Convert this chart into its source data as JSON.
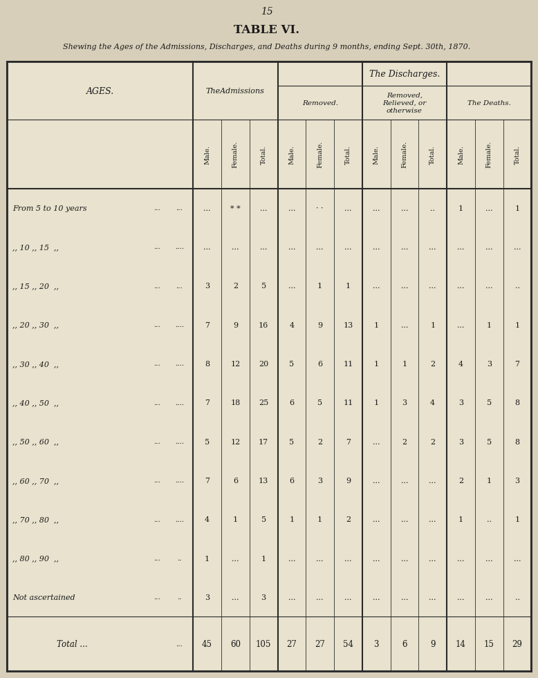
{
  "page_number": "15",
  "title": "TABLE VI.",
  "subtitle": "Shewing the Ages of the Admissions, Discharges, and Deaths during 9 months, ending Sept. 30th, 1870.",
  "bg_color": "#d8cfba",
  "table_bg": "#e8e2ce",
  "col_header_bg": "#ddd7c4",
  "discharge_header": "The Discharges.",
  "ages_label": "AGES.",
  "adm_label": "TheAdmissions",
  "removed_label": "Removed.",
  "relieved_label": "Removed,\nRelieved, or\notherwise",
  "deaths_label": "The Deaths.",
  "sub_labels": [
    "Male.",
    "Female.",
    "Total."
  ],
  "rows": [
    {
      "age": "From 5 to 10 years",
      "dots1": "...",
      "dots2": "...",
      "adm": [
        "...",
        "* *",
        "..."
      ],
      "rem": [
        "...",
        "· ·",
        "..."
      ],
      "rel": [
        "...",
        "...",
        ".."
      ],
      "dea": [
        "1",
        "...",
        "1"
      ]
    },
    {
      "age": ",, 10 ,, 15  ,,",
      "dots1": "...",
      "dots2": "....",
      "adm": [
        "...",
        "...",
        "..."
      ],
      "rem": [
        "...",
        "...",
        "..."
      ],
      "rel": [
        "...",
        "...",
        "..."
      ],
      "dea": [
        "...",
        "...",
        "..."
      ]
    },
    {
      "age": ",, 15 ,, 20  ,,",
      "dots1": "...",
      "dots2": "...",
      "adm": [
        "3",
        "2",
        "5"
      ],
      "rem": [
        "...",
        "1",
        "1"
      ],
      "rel": [
        "...",
        "...",
        "..."
      ],
      "dea": [
        "...",
        "...",
        ".."
      ]
    },
    {
      "age": ",, 20 ,, 30  ,,",
      "dots1": "...",
      "dots2": "....",
      "adm": [
        "7",
        "9",
        "16"
      ],
      "rem": [
        "4",
        "9",
        "13"
      ],
      "rel": [
        "1",
        "...",
        "1"
      ],
      "dea": [
        "...",
        "1",
        "1"
      ]
    },
    {
      "age": ",, 30 ,, 40  ,,",
      "dots1": "...",
      "dots2": "....",
      "adm": [
        "8",
        "12",
        "20"
      ],
      "rem": [
        "5",
        "6",
        "11"
      ],
      "rel": [
        "1",
        "1",
        "2"
      ],
      "dea": [
        "4",
        "3",
        "7"
      ]
    },
    {
      "age": ",, 40 ,, 50  ,,",
      "dots1": "...",
      "dots2": "....",
      "adm": [
        "7",
        "18",
        "25"
      ],
      "rem": [
        "6",
        "5",
        "11"
      ],
      "rel": [
        "1",
        "3",
        "4"
      ],
      "dea": [
        "3",
        "5",
        "8"
      ]
    },
    {
      "age": ",, 50 ,, 60  ,,",
      "dots1": "...",
      "dots2": "....",
      "adm": [
        "5",
        "12",
        "17"
      ],
      "rem": [
        "5",
        "2",
        "7"
      ],
      "rel": [
        "...",
        "2",
        "2"
      ],
      "dea": [
        "3",
        "5",
        "8"
      ]
    },
    {
      "age": ",, 60 ,, 70  ,,",
      "dots1": "...",
      "dots2": "....",
      "adm": [
        "7",
        "6",
        "13"
      ],
      "rem": [
        "6",
        "3",
        "9"
      ],
      "rel": [
        "...",
        "...",
        "..."
      ],
      "dea": [
        "2",
        "1",
        "3"
      ]
    },
    {
      "age": ",, 70 ,, 80  ,,",
      "dots1": "...",
      "dots2": "....",
      "adm": [
        "4",
        "1",
        "5"
      ],
      "rem": [
        "1",
        "1",
        "2"
      ],
      "rel": [
        "...",
        "...",
        "..."
      ],
      "dea": [
        "1",
        "..",
        "1"
      ]
    },
    {
      "age": ",, 80 ,, 90  ,,",
      "dots1": "...",
      "dots2": "..",
      "adm": [
        "1",
        "...",
        "1"
      ],
      "rem": [
        "...",
        "...",
        "..."
      ],
      "rel": [
        "...",
        "...",
        "..."
      ],
      "dea": [
        "...",
        "...",
        "..."
      ]
    },
    {
      "age": "Not ascertained",
      "dots1": "...",
      "dots2": "..",
      "adm": [
        "3",
        "...",
        "3"
      ],
      "rem": [
        "...",
        "...",
        "..."
      ],
      "rel": [
        "...",
        "...",
        "..."
      ],
      "dea": [
        "...",
        "...",
        ".."
      ]
    }
  ],
  "totals": {
    "label": "Total ...",
    "dots": "...",
    "adm": [
      "45",
      "60",
      "105"
    ],
    "rem": [
      "27",
      "27",
      "54"
    ],
    "rel": [
      "3",
      "6",
      "9"
    ],
    "dea": [
      "14",
      "15",
      "29"
    ]
  }
}
